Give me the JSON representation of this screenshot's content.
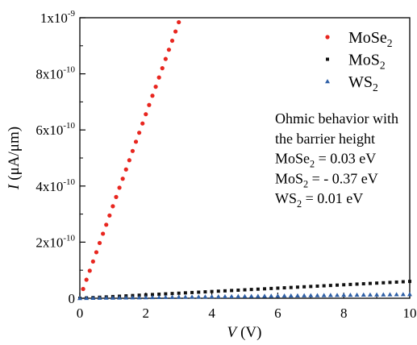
{
  "chart_data": {
    "type": "scatter",
    "xlabel": {
      "symbol": "V",
      "unit": "(V)"
    },
    "ylabel": {
      "symbol": "I",
      "unit": "(μA/μm)"
    },
    "xlim": [
      0,
      10
    ],
    "ylim": [
      0,
      1e-09
    ],
    "grid": false,
    "legend_position": "top-right",
    "xticks": [
      {
        "value": 0,
        "label": "0"
      },
      {
        "value": 2,
        "label": "2"
      },
      {
        "value": 4,
        "label": "4"
      },
      {
        "value": 6,
        "label": "6"
      },
      {
        "value": 8,
        "label": "8"
      },
      {
        "value": 10,
        "label": "10"
      }
    ],
    "yticks": [
      {
        "value": 0,
        "label": "0"
      },
      {
        "value": 2e-10,
        "label": "2x10",
        "exp": "-10"
      },
      {
        "value": 4e-10,
        "label": "4x10",
        "exp": "-10"
      },
      {
        "value": 6e-10,
        "label": "6x10",
        "exp": "-10"
      },
      {
        "value": 8e-10,
        "label": "8x10",
        "exp": "-10"
      },
      {
        "value": 1e-09,
        "label": "1x10",
        "exp": "-9"
      }
    ],
    "series": [
      {
        "name": "MoSe2",
        "marker": "circle",
        "color": "#e8261f",
        "x": [
          0.1,
          0.2,
          0.3,
          0.4,
          0.5,
          0.6,
          0.7,
          0.8,
          0.9,
          1.0,
          1.1,
          1.2,
          1.3,
          1.4,
          1.5,
          1.6,
          1.7,
          1.8,
          1.9,
          2.0,
          2.1,
          2.2,
          2.3,
          2.4,
          2.5,
          2.6,
          2.7,
          2.8,
          2.9,
          3.0
        ],
        "y": [
          3.3e-11,
          6.6e-11,
          9.8e-11,
          1.31e-10,
          1.64e-10,
          1.97e-10,
          2.3e-10,
          2.62e-10,
          2.95e-10,
          3.28e-10,
          3.61e-10,
          3.94e-10,
          4.26e-10,
          4.59e-10,
          4.92e-10,
          5.25e-10,
          5.58e-10,
          5.9e-10,
          6.23e-10,
          6.56e-10,
          6.89e-10,
          7.22e-10,
          7.54e-10,
          7.87e-10,
          8.2e-10,
          8.53e-10,
          8.86e-10,
          9.18e-10,
          9.51e-10,
          9.84e-10
        ]
      },
      {
        "name": "MoS2",
        "marker": "square",
        "color": "#111111",
        "x": [
          0,
          0.2,
          0.4,
          0.6,
          0.8,
          1,
          1.2,
          1.4,
          1.6,
          1.8,
          2,
          2.2,
          2.4,
          2.6,
          2.8,
          3,
          3.2,
          3.4,
          3.6,
          3.8,
          4,
          4.2,
          4.4,
          4.6,
          4.8,
          5,
          5.2,
          5.4,
          5.6,
          5.8,
          6,
          6.2,
          6.4,
          6.6,
          6.8,
          7,
          7.2,
          7.4,
          7.6,
          7.8,
          8,
          8.2,
          8.4,
          8.6,
          8.8,
          9,
          9.2,
          9.4,
          9.6,
          9.8,
          10
        ],
        "y": [
          0,
          1.2e-12,
          2.4e-12,
          3.6e-12,
          4.8e-12,
          6e-12,
          7.2e-12,
          8.4e-12,
          9.6e-12,
          1.08e-11,
          1.2e-11,
          1.32e-11,
          1.44e-11,
          1.56e-11,
          1.68e-11,
          1.8e-11,
          1.92e-11,
          2.04e-11,
          2.16e-11,
          2.28e-11,
          2.4e-11,
          2.52e-11,
          2.64e-11,
          2.76e-11,
          2.88e-11,
          3e-11,
          3.12e-11,
          3.24e-11,
          3.36e-11,
          3.48e-11,
          3.6e-11,
          3.72e-11,
          3.84e-11,
          3.96e-11,
          4.08e-11,
          4.2e-11,
          4.32e-11,
          4.44e-11,
          4.56e-11,
          4.68e-11,
          4.8e-11,
          4.92e-11,
          5.04e-11,
          5.16e-11,
          5.28e-11,
          5.4e-11,
          5.52e-11,
          5.64e-11,
          5.76e-11,
          5.88e-11,
          6e-11
        ]
      },
      {
        "name": "WS2",
        "marker": "triangle",
        "color": "#2e5fa6",
        "x": [
          0,
          0.2,
          0.4,
          0.6,
          0.8,
          1,
          1.2,
          1.4,
          1.6,
          1.8,
          2,
          2.2,
          2.4,
          2.6,
          2.8,
          3,
          3.2,
          3.4,
          3.6,
          3.8,
          4,
          4.2,
          4.4,
          4.6,
          4.8,
          5,
          5.2,
          5.4,
          5.6,
          5.8,
          6,
          6.2,
          6.4,
          6.6,
          6.8,
          7,
          7.2,
          7.4,
          7.6,
          7.8,
          8,
          8.2,
          8.4,
          8.6,
          8.8,
          9,
          9.2,
          9.4,
          9.6,
          9.8,
          10
        ],
        "y": [
          0,
          2.8e-13,
          5.6e-13,
          8.4e-13,
          1.12e-12,
          1.4e-12,
          1.68e-12,
          1.96e-12,
          2.24e-12,
          2.52e-12,
          2.8e-12,
          3.08e-12,
          3.36e-12,
          3.64e-12,
          3.92e-12,
          4.2e-12,
          4.48e-12,
          4.76e-12,
          5.04e-12,
          5.32e-12,
          5.6e-12,
          5.88e-12,
          6.16e-12,
          6.44e-12,
          6.72e-12,
          7e-12,
          7.28e-12,
          7.56e-12,
          7.84e-12,
          8.12e-12,
          8.4e-12,
          8.68e-12,
          8.96e-12,
          9.24e-12,
          9.52e-12,
          9.8e-12,
          1.008e-11,
          1.036e-11,
          1.064e-11,
          1.092e-11,
          1.12e-11,
          1.148e-11,
          1.176e-11,
          1.204e-11,
          1.232e-11,
          1.26e-11,
          1.288e-11,
          1.316e-11,
          1.344e-11,
          1.372e-11,
          1.4e-11
        ]
      }
    ],
    "annotations": [
      "Ohmic behavior with",
      "the barrier height",
      "MoSe2 = 0.03 eV",
      "MoS2 = - 0.37 eV",
      "WS2 = 0.01 eV"
    ]
  }
}
